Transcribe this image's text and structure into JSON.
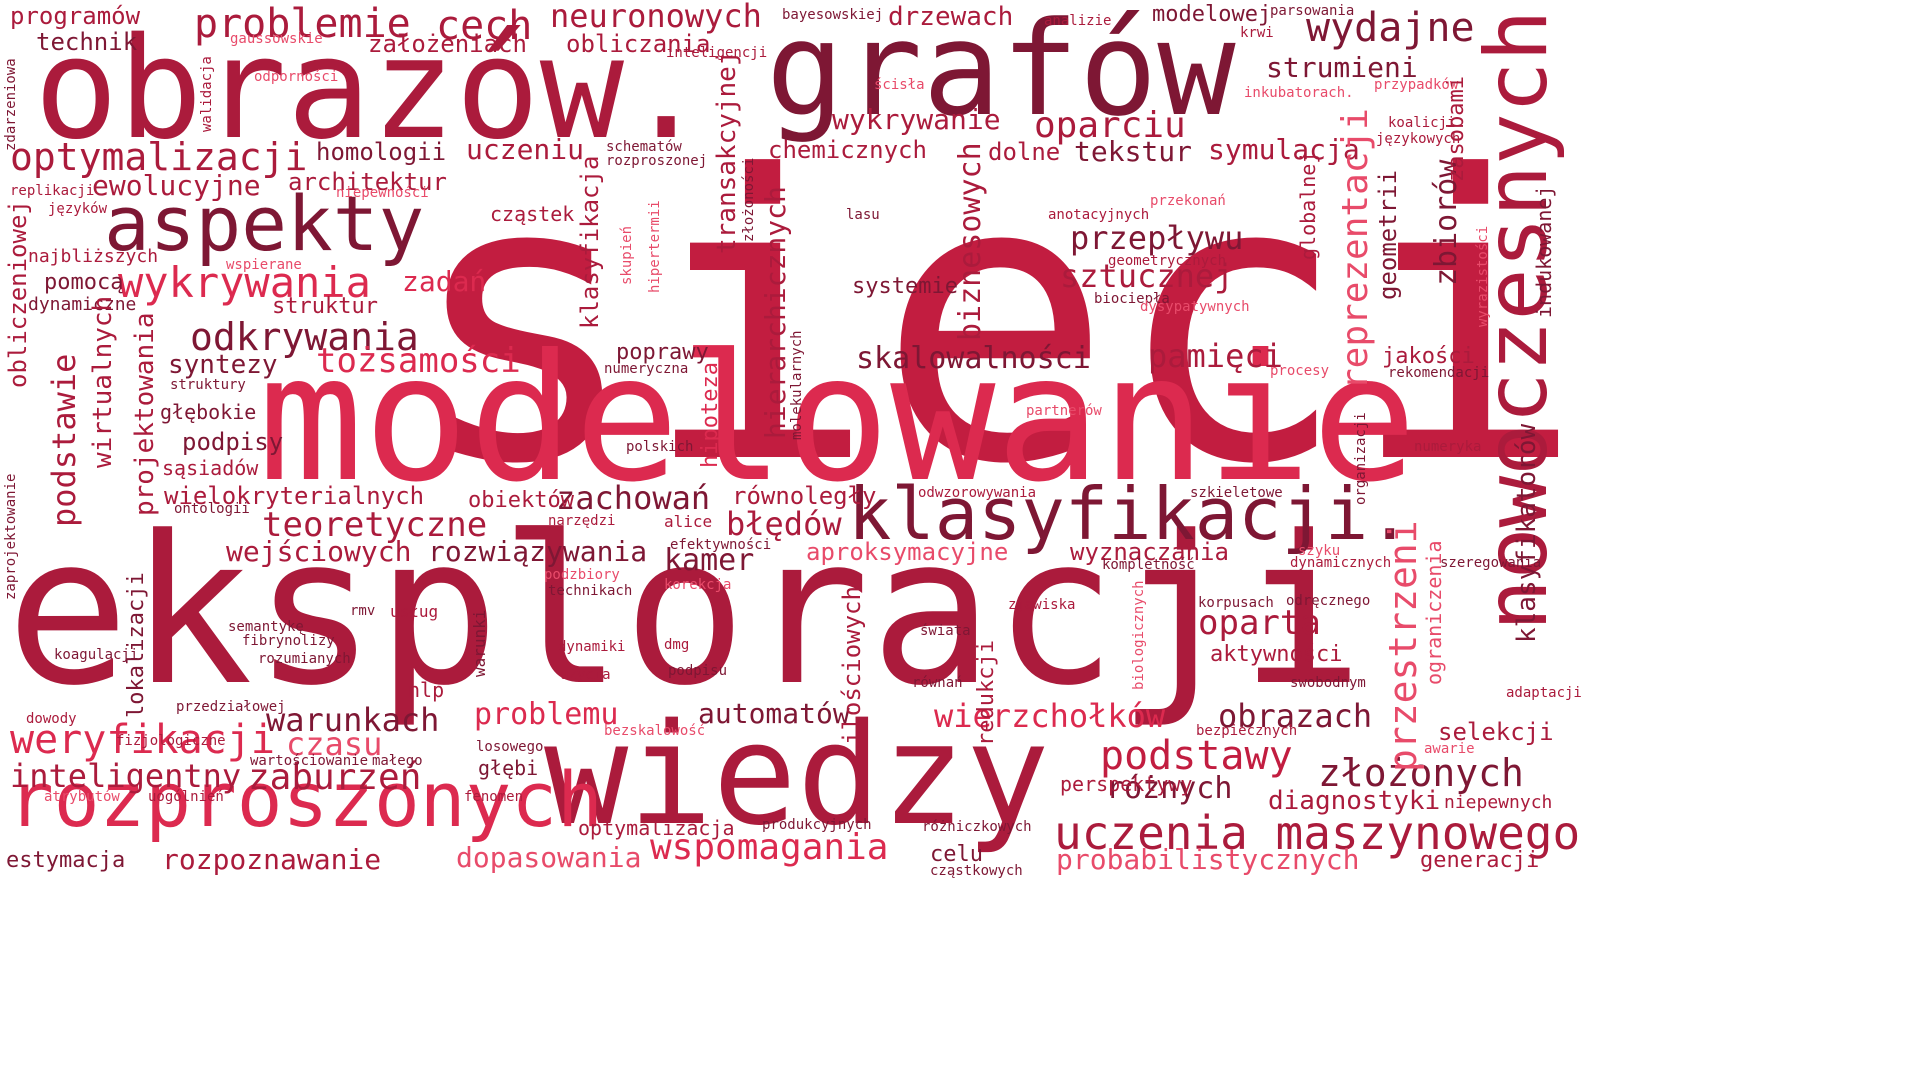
{
  "palette": {
    "deep": "#7e1734",
    "dark": "#951a38",
    "mid": "#ab1b3c",
    "bright": "#c21d40",
    "light": "#dc2a4f",
    "pale": "#e84b6a"
  },
  "words": [
    {
      "text": "sieci",
      "c": "bright"
    },
    {
      "text": "modelowanie",
      "c": "light"
    },
    {
      "text": "eksploracji",
      "c": "mid"
    },
    {
      "text": "obrazów.",
      "c": "mid"
    },
    {
      "text": "grafów",
      "c": "deep"
    },
    {
      "text": "wiedzy",
      "c": "mid"
    },
    {
      "text": "nowoczesnych",
      "c": "mid"
    },
    {
      "text": "klasyfikacji.",
      "c": "deep"
    },
    {
      "text": "rozproszonych",
      "c": "light"
    },
    {
      "text": "aspekty",
      "c": "deep"
    },
    {
      "text": "uczenia maszynowego",
      "c": "mid"
    },
    {
      "text": "optymalizacji",
      "c": "mid"
    },
    {
      "text": "wykrywania",
      "c": "light"
    },
    {
      "text": "problemie",
      "c": "mid"
    },
    {
      "text": "cech",
      "c": "mid"
    },
    {
      "text": "neuronowych",
      "c": "mid"
    },
    {
      "text": "wydajne",
      "c": "deep"
    },
    {
      "text": "odkrywania",
      "c": "deep"
    },
    {
      "text": "tożsamości",
      "c": "light"
    },
    {
      "text": "teoretyczne",
      "c": "mid"
    },
    {
      "text": "weryfikacji",
      "c": "light"
    },
    {
      "text": "inteligentny",
      "c": "mid"
    },
    {
      "text": "zaburzeń",
      "c": "mid"
    },
    {
      "text": "skalowalności",
      "c": "deep"
    },
    {
      "text": "oparciu",
      "c": "mid"
    },
    {
      "text": "przepływu",
      "c": "deep"
    },
    {
      "text": "sztucznej",
      "c": "mid"
    },
    {
      "text": "pamięci",
      "c": "mid"
    },
    {
      "text": "wspomagania",
      "c": "light"
    },
    {
      "text": "podstawy",
      "c": "bright"
    },
    {
      "text": "złożonych",
      "c": "deep"
    },
    {
      "text": "różnych",
      "c": "deep"
    },
    {
      "text": "wierzchołków",
      "c": "light"
    },
    {
      "text": "obrazach",
      "c": "deep"
    },
    {
      "text": "oparta",
      "c": "mid"
    },
    {
      "text": "warunkach",
      "c": "deep"
    },
    {
      "text": "czasu",
      "c": "pale"
    },
    {
      "text": "problemu",
      "c": "light"
    },
    {
      "text": "automatów",
      "c": "deep"
    },
    {
      "text": "zachowań",
      "c": "deep"
    },
    {
      "text": "błędów",
      "c": "mid"
    },
    {
      "text": "rozwiązywania",
      "c": "deep"
    },
    {
      "text": "wejściowych",
      "c": "mid"
    },
    {
      "text": "dopasowania",
      "c": "pale"
    },
    {
      "text": "probabilistycznych",
      "c": "pale"
    },
    {
      "text": "rozpoznawanie",
      "c": "mid"
    },
    {
      "text": "diagnostyki",
      "c": "mid"
    },
    {
      "text": "wyznaczania",
      "c": "mid"
    },
    {
      "text": "aproksymacyjne",
      "c": "pale"
    },
    {
      "text": "kamer",
      "c": "deep"
    },
    {
      "text": "ewolucyjne",
      "c": "mid"
    },
    {
      "text": "homologii",
      "c": "deep"
    },
    {
      "text": "architektur",
      "c": "mid"
    },
    {
      "text": "uczeniu",
      "c": "mid"
    },
    {
      "text": "wykrywanie",
      "c": "mid"
    },
    {
      "text": "chemicznych",
      "c": "mid"
    },
    {
      "text": "dolne",
      "c": "mid"
    },
    {
      "text": "tekstur",
      "c": "deep"
    },
    {
      "text": "symulacja",
      "c": "mid"
    },
    {
      "text": "strumieni",
      "c": "deep"
    },
    {
      "text": "modelowej",
      "c": "deep"
    },
    {
      "text": "drzewach",
      "c": "mid"
    },
    {
      "text": "założeniach",
      "c": "mid"
    },
    {
      "text": "obliczania",
      "c": "mid"
    },
    {
      "text": "programów",
      "c": "mid"
    },
    {
      "text": "technik",
      "c": "deep"
    },
    {
      "text": "zadań",
      "c": "light"
    },
    {
      "text": "syntezy",
      "c": "deep"
    },
    {
      "text": "podpisy",
      "c": "deep"
    },
    {
      "text": "wielokryterialnych",
      "c": "mid"
    },
    {
      "text": "pomocą",
      "c": "deep"
    },
    {
      "text": "struktur",
      "c": "mid"
    },
    {
      "text": "dynamiczne",
      "c": "deep"
    },
    {
      "text": "najbliższych",
      "c": "mid"
    },
    {
      "text": "głębokie",
      "c": "deep"
    },
    {
      "text": "sąsiadów",
      "c": "mid"
    },
    {
      "text": "cząstek",
      "c": "mid"
    },
    {
      "text": "systemie",
      "c": "deep"
    },
    {
      "text": "poprawy",
      "c": "deep"
    },
    {
      "text": "równoległy",
      "c": "mid"
    },
    {
      "text": "obiektów",
      "c": "mid"
    },
    {
      "text": "aktywności",
      "c": "mid"
    },
    {
      "text": "selekcji",
      "c": "mid"
    },
    {
      "text": "jakości",
      "c": "mid"
    },
    {
      "text": "estymacja",
      "c": "deep"
    },
    {
      "text": "optymalizacja",
      "c": "mid"
    },
    {
      "text": "celu",
      "c": "deep"
    },
    {
      "text": "perspektywy",
      "c": "mid"
    },
    {
      "text": "generacji",
      "c": "mid"
    },
    {
      "text": "głębi",
      "c": "deep"
    },
    {
      "text": "niepewnych",
      "c": "mid"
    },
    {
      "text": "redukcji",
      "c": "mid"
    },
    {
      "text": "nlp",
      "c": "mid"
    },
    {
      "text": "bayesowskiej",
      "c": "deep"
    },
    {
      "text": "gaussowskie",
      "c": "pale"
    },
    {
      "text": "inteligencji",
      "c": "mid"
    },
    {
      "text": "odporności",
      "c": "pale"
    },
    {
      "text": "ścisła",
      "c": "pale"
    },
    {
      "text": "analizie",
      "c": "mid"
    },
    {
      "text": "parsowania",
      "c": "deep"
    },
    {
      "text": "krwi",
      "c": "mid"
    },
    {
      "text": "inkubatorach.",
      "c": "pale"
    },
    {
      "text": "przypadków",
      "c": "pale"
    },
    {
      "text": "koalicji",
      "c": "mid"
    },
    {
      "text": "językowych",
      "c": "mid"
    },
    {
      "text": "schematów",
      "c": "deep"
    },
    {
      "text": "rozproszonej",
      "c": "deep"
    },
    {
      "text": "niepewności",
      "c": "pale"
    },
    {
      "text": "replikacji",
      "c": "mid"
    },
    {
      "text": "języków",
      "c": "mid"
    },
    {
      "text": "wspierane",
      "c": "pale"
    },
    {
      "text": "struktury",
      "c": "deep"
    },
    {
      "text": "ontologii",
      "c": "deep"
    },
    {
      "text": "lasu",
      "c": "deep"
    },
    {
      "text": "anotacyjnych",
      "c": "mid"
    },
    {
      "text": "przekonań",
      "c": "pale"
    },
    {
      "text": "geometrycznych",
      "c": "mid"
    },
    {
      "text": "biociepła",
      "c": "deep"
    },
    {
      "text": "dysypatywnych",
      "c": "pale"
    },
    {
      "text": "procesy",
      "c": "pale"
    },
    {
      "text": "rekomendacji",
      "c": "deep"
    },
    {
      "text": "partnerów",
      "c": "pale"
    },
    {
      "text": "numeryka",
      "c": "mid"
    },
    {
      "text": "polskich",
      "c": "deep"
    },
    {
      "text": "numeryczna",
      "c": "deep"
    },
    {
      "text": "odwzorowywania",
      "c": "mid"
    },
    {
      "text": "szkieletowe",
      "c": "deep"
    },
    {
      "text": "narzędzi",
      "c": "mid"
    },
    {
      "text": "alice",
      "c": "mid"
    },
    {
      "text": "efektywności",
      "c": "deep"
    },
    {
      "text": "kompletność",
      "c": "deep"
    },
    {
      "text": "szyku",
      "c": "pale"
    },
    {
      "text": "dynamicznych",
      "c": "mid"
    },
    {
      "text": "szeregowania",
      "c": "deep"
    },
    {
      "text": "podzbiory",
      "c": "pale"
    },
    {
      "text": "technikach",
      "c": "deep"
    },
    {
      "text": "korekcja",
      "c": "pale"
    },
    {
      "text": "zjawiska",
      "c": "mid"
    },
    {
      "text": "korpusach",
      "c": "deep"
    },
    {
      "text": "odręcznego",
      "c": "deep"
    },
    {
      "text": "rmv",
      "c": "deep"
    },
    {
      "text": "usług",
      "c": "mid"
    },
    {
      "text": "semantykę",
      "c": "deep"
    },
    {
      "text": "fibrynolizy",
      "c": "deep"
    },
    {
      "text": "rozumianych",
      "c": "deep"
    },
    {
      "text": "koagulacji",
      "c": "deep"
    },
    {
      "text": "dynamiki",
      "c": "mid"
    },
    {
      "text": "dmg",
      "c": "mid"
    },
    {
      "text": "świata",
      "c": "deep"
    },
    {
      "text": "użycia",
      "c": "mid"
    },
    {
      "text": "podpisu",
      "c": "deep"
    },
    {
      "text": "równań",
      "c": "deep"
    },
    {
      "text": "swobodnym",
      "c": "deep"
    },
    {
      "text": "przedziałowej",
      "c": "deep"
    },
    {
      "text": "dowody",
      "c": "mid"
    },
    {
      "text": "fizjologiczne",
      "c": "mid"
    },
    {
      "text": "bezskalowość",
      "c": "pale"
    },
    {
      "text": "losowego",
      "c": "deep"
    },
    {
      "text": "bezpiecznych",
      "c": "mid"
    },
    {
      "text": "awarie",
      "c": "pale"
    },
    {
      "text": "adaptacji",
      "c": "mid"
    },
    {
      "text": "wartościowanie",
      "c": "deep"
    },
    {
      "text": "małego",
      "c": "deep"
    },
    {
      "text": "atrybutów",
      "c": "pale"
    },
    {
      "text": "uogólnień",
      "c": "mid"
    },
    {
      "text": "fenomen",
      "c": "mid"
    },
    {
      "text": "produkcyjnych",
      "c": "deep"
    },
    {
      "text": "różniczkowych",
      "c": "deep"
    },
    {
      "text": "cząstkowych",
      "c": "deep"
    },
    {
      "text": "obliczeniowej",
      "c": "mid"
    },
    {
      "text": "podstawie",
      "c": "mid"
    },
    {
      "text": "wirtualnych",
      "c": "mid"
    },
    {
      "text": "projektowania",
      "c": "mid"
    },
    {
      "text": "lokalizacji",
      "c": "deep"
    },
    {
      "text": "klasyfikacja",
      "c": "mid"
    },
    {
      "text": "transakcyjnej",
      "c": "mid"
    },
    {
      "text": "hierarchicznych",
      "c": "mid"
    },
    {
      "text": "biznesowych",
      "c": "mid"
    },
    {
      "text": "reprezentacji",
      "c": "pale"
    },
    {
      "text": "geometrii",
      "c": "deep"
    },
    {
      "text": "zbiorów",
      "c": "deep"
    },
    {
      "text": "przestrzeni",
      "c": "pale"
    },
    {
      "text": "ograniczenia",
      "c": "pale"
    },
    {
      "text": "klasyfikatorów",
      "c": "deep"
    },
    {
      "text": "indukowanej",
      "c": "deep"
    },
    {
      "text": "zasobami",
      "c": "mid"
    },
    {
      "text": "globalnej",
      "c": "mid"
    },
    {
      "text": "ilościowych",
      "c": "mid"
    },
    {
      "text": "hipoteza",
      "c": "light"
    },
    {
      "text": "warunki",
      "c": "deep"
    },
    {
      "text": "zdarzeniowa",
      "c": "deep"
    },
    {
      "text": "walidacja",
      "c": "mid"
    },
    {
      "text": "zaprojektowanie",
      "c": "deep"
    },
    {
      "text": "skupień",
      "c": "pale"
    },
    {
      "text": "hipertermii",
      "c": "pale"
    },
    {
      "text": "złożoności",
      "c": "deep"
    },
    {
      "text": "molekularnych",
      "c": "deep"
    },
    {
      "text": "biologicznych",
      "c": "pale"
    },
    {
      "text": "organizacji",
      "c": "deep"
    },
    {
      "text": "wyrazistości",
      "c": "pale"
    }
  ]
}
